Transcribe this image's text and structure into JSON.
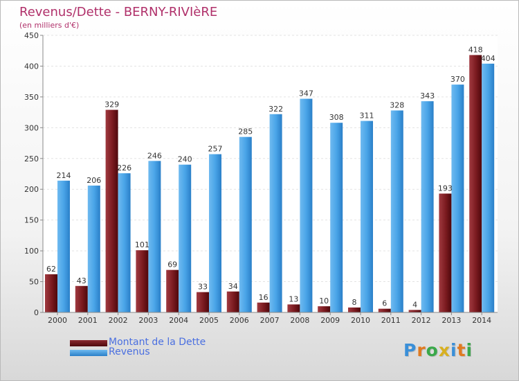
{
  "title": "Revenus/Dette - BERNY-RIVIèRE",
  "subtitle": "(en milliers d'€)",
  "logo": "Proxiti",
  "colors": {
    "debt": "#7a1a1f",
    "revenue": "#3f9de2",
    "title": "#b0306a",
    "legend_text": "#4a6fe0"
  },
  "chart_data": {
    "type": "bar",
    "categories": [
      "2000",
      "2001",
      "2002",
      "2003",
      "2004",
      "2005",
      "2006",
      "2007",
      "2008",
      "2009",
      "2010",
      "2011",
      "2012",
      "2013",
      "2014"
    ],
    "series": [
      {
        "name": "Montant de la Dette",
        "values": [
          62,
          43,
          329,
          101,
          69,
          33,
          34,
          16,
          13,
          10,
          8,
          6,
          4,
          193,
          418
        ]
      },
      {
        "name": "Revenus",
        "values": [
          214,
          206,
          226,
          246,
          240,
          257,
          285,
          322,
          347,
          308,
          311,
          328,
          343,
          370,
          404
        ]
      }
    ],
    "ylim": [
      0,
      450
    ],
    "yticks": [
      0,
      50,
      100,
      150,
      200,
      250,
      300,
      350,
      400,
      450
    ],
    "grid": true,
    "legend": "bottom-left"
  }
}
